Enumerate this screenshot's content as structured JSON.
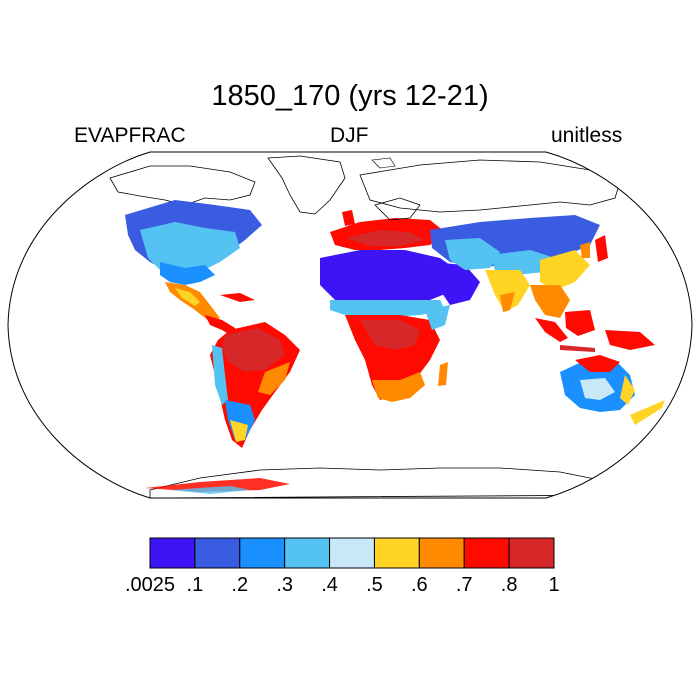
{
  "title": "1850_170 (yrs 12-21)",
  "left_label": "EVAPFRAC",
  "center_label": "DJF",
  "right_label": "unitless",
  "projection": "Robinson",
  "colorbar": {
    "labels": [
      ".0025",
      ".1",
      ".2",
      ".3",
      ".4",
      ".5",
      ".6",
      ".7",
      ".8",
      "1"
    ],
    "colors": [
      "#3d14f5",
      "#3a5ce0",
      "#1a90ff",
      "#55c3f2",
      "#c8e8f8",
      "#ffd424",
      "#ff8a00",
      "#ff0a00",
      "#d62828"
    ]
  },
  "ocean_color": "#ffffff",
  "coast_color": "#000000"
}
